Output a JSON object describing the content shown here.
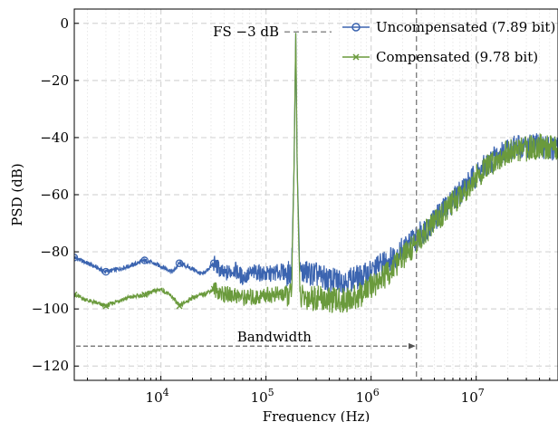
{
  "chart_data": {
    "type": "line",
    "title": "",
    "xlabel": "Frequency (Hz)",
    "ylabel": "PSD (dB)",
    "x_scale": "log",
    "xlim": [
      1500,
      60000000
    ],
    "ylim": [
      -125,
      5
    ],
    "x_ticks": [
      {
        "value": 10000,
        "base": "10",
        "exp": "4"
      },
      {
        "value": 100000,
        "base": "10",
        "exp": "5"
      },
      {
        "value": 1000000,
        "base": "10",
        "exp": "6"
      },
      {
        "value": 10000000,
        "base": "10",
        "exp": "7"
      }
    ],
    "y_ticks": [
      {
        "value": 0,
        "label": "0"
      },
      {
        "value": -20,
        "label": "−20"
      },
      {
        "value": -40,
        "label": "−40"
      },
      {
        "value": -60,
        "label": "−60"
      },
      {
        "value": -80,
        "label": "−80"
      },
      {
        "value": -100,
        "label": "−100"
      },
      {
        "value": -120,
        "label": "−120"
      }
    ],
    "grid": true,
    "legend_position": "top-right",
    "series": [
      {
        "name": "Uncompensated (7.89 bit)",
        "color": "#3b64b0",
        "marker": "circle",
        "markers_x": [
          1500,
          3000,
          7000,
          15000,
          32000
        ],
        "points": [
          [
            1500,
            -82
          ],
          [
            2000,
            -84
          ],
          [
            3000,
            -87
          ],
          [
            4000,
            -86
          ],
          [
            5000,
            -85
          ],
          [
            7000,
            -83
          ],
          [
            10000,
            -85
          ],
          [
            13000,
            -87
          ],
          [
            15000,
            -84
          ],
          [
            20000,
            -86
          ],
          [
            25000,
            -88
          ],
          [
            32000,
            -84
          ],
          [
            40000,
            -88
          ],
          [
            50000,
            -86
          ],
          [
            60000,
            -89
          ],
          [
            80000,
            -87
          ],
          [
            100000,
            -88
          ],
          [
            140000,
            -87
          ],
          [
            175000,
            -88
          ],
          [
            185000,
            -50
          ],
          [
            192000,
            -3
          ],
          [
            198000,
            -50
          ],
          [
            210000,
            -87
          ],
          [
            300000,
            -88
          ],
          [
            400000,
            -90
          ],
          [
            500000,
            -90
          ],
          [
            600000,
            -90
          ],
          [
            700000,
            -89
          ],
          [
            800000,
            -89
          ],
          [
            1000000,
            -87
          ],
          [
            1300000,
            -84
          ],
          [
            1600000,
            -82
          ],
          [
            2000000,
            -79
          ],
          [
            2700000,
            -75
          ],
          [
            3500000,
            -71
          ],
          [
            5000000,
            -65
          ],
          [
            7000000,
            -59
          ],
          [
            10000000,
            -53
          ],
          [
            15000000,
            -47
          ],
          [
            20000000,
            -44
          ],
          [
            30000000,
            -43
          ],
          [
            40000000,
            -43
          ],
          [
            60000000,
            -44
          ]
        ]
      },
      {
        "name": "Compensated (9.78 bit)",
        "color": "#6a9a3c",
        "marker": "x",
        "markers_x": [
          1500,
          3000,
          7000,
          15000,
          32000
        ],
        "points": [
          [
            1500,
            -95
          ],
          [
            2000,
            -97
          ],
          [
            3000,
            -99
          ],
          [
            4000,
            -97
          ],
          [
            5000,
            -96
          ],
          [
            7000,
            -95
          ],
          [
            10000,
            -93
          ],
          [
            13000,
            -96
          ],
          [
            15000,
            -99
          ],
          [
            20000,
            -96
          ],
          [
            25000,
            -95
          ],
          [
            32000,
            -93
          ],
          [
            40000,
            -95
          ],
          [
            50000,
            -95
          ],
          [
            60000,
            -96
          ],
          [
            80000,
            -96
          ],
          [
            100000,
            -95
          ],
          [
            140000,
            -95
          ],
          [
            175000,
            -95
          ],
          [
            185000,
            -50
          ],
          [
            192000,
            -3
          ],
          [
            198000,
            -50
          ],
          [
            210000,
            -96
          ],
          [
            300000,
            -96
          ],
          [
            400000,
            -97
          ],
          [
            500000,
            -97
          ],
          [
            600000,
            -97
          ],
          [
            700000,
            -96
          ],
          [
            800000,
            -95
          ],
          [
            1000000,
            -92
          ],
          [
            1300000,
            -89
          ],
          [
            1600000,
            -86
          ],
          [
            2000000,
            -82
          ],
          [
            2700000,
            -77
          ],
          [
            3500000,
            -72
          ],
          [
            5000000,
            -66
          ],
          [
            7000000,
            -60
          ],
          [
            10000000,
            -54
          ],
          [
            15000000,
            -48
          ],
          [
            20000000,
            -45
          ],
          [
            30000000,
            -44
          ],
          [
            40000000,
            -43
          ],
          [
            60000000,
            -44
          ]
        ]
      }
    ],
    "annotations": {
      "fs_label": "FS −3 dB",
      "fs_level": -3,
      "bandwidth_label": "Bandwidth",
      "bandwidth_level": -113,
      "bandwidth_edge": 2700000,
      "spur_freq": 192000
    }
  }
}
